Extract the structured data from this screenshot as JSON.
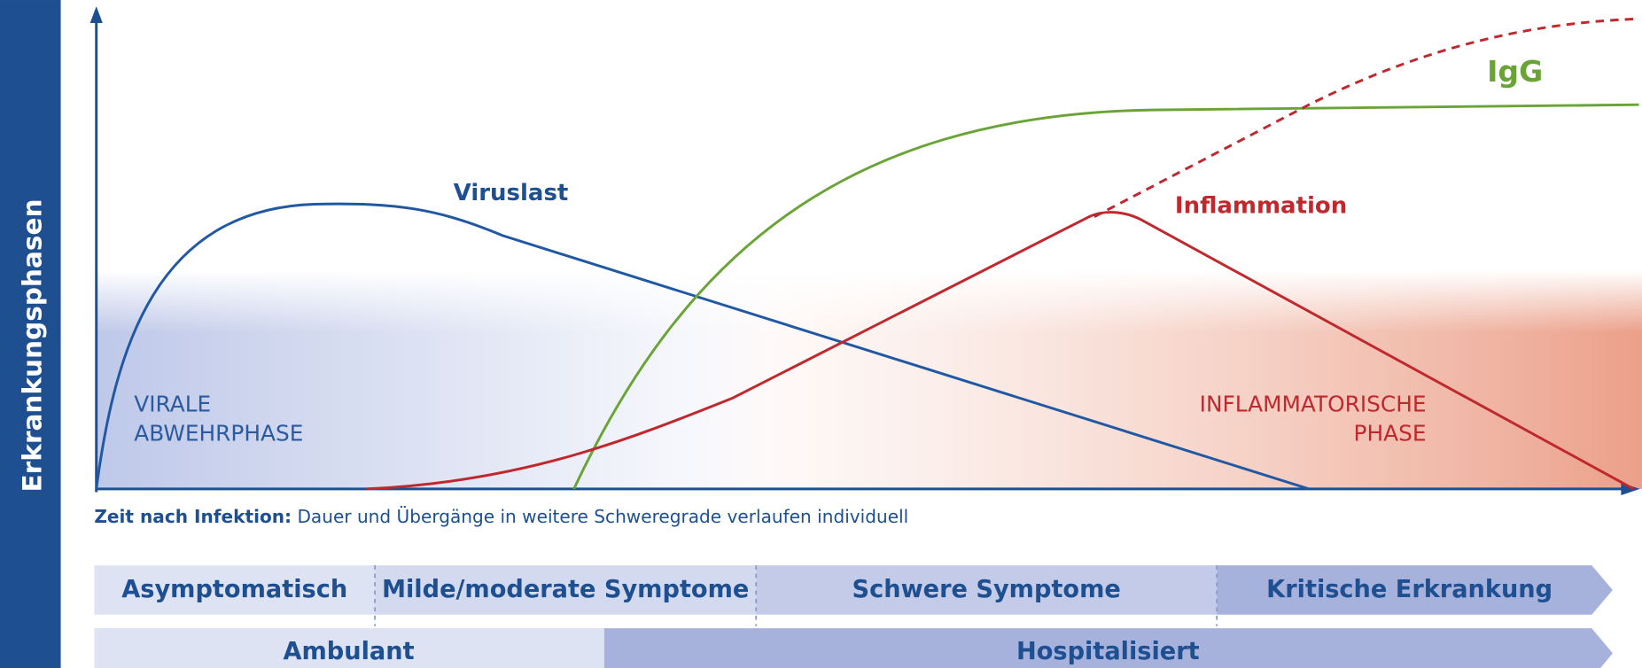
{
  "side_label": "Erkrankungsphasen",
  "curves": {
    "viruslast": "Viruslast",
    "igg": "IgG",
    "inflammation": "Inflammation"
  },
  "phases": {
    "viral": [
      "VIRALE",
      "ABWEHRPHASE"
    ],
    "inflammatory": [
      "INFLAMMATORISCHE",
      "PHASE"
    ]
  },
  "time_note": {
    "bold": "Zeit nach Infektion:",
    "text": " Dauer und Übergänge in weitere Schweregrade verlaufen individuell"
  },
  "severity": [
    "Asymptomatisch",
    "Milde/moderate Symptome",
    "Schwere Symptome",
    "Kritische Erkrankung"
  ],
  "care": [
    "Ambulant",
    "Hospitalisiert"
  ]
}
